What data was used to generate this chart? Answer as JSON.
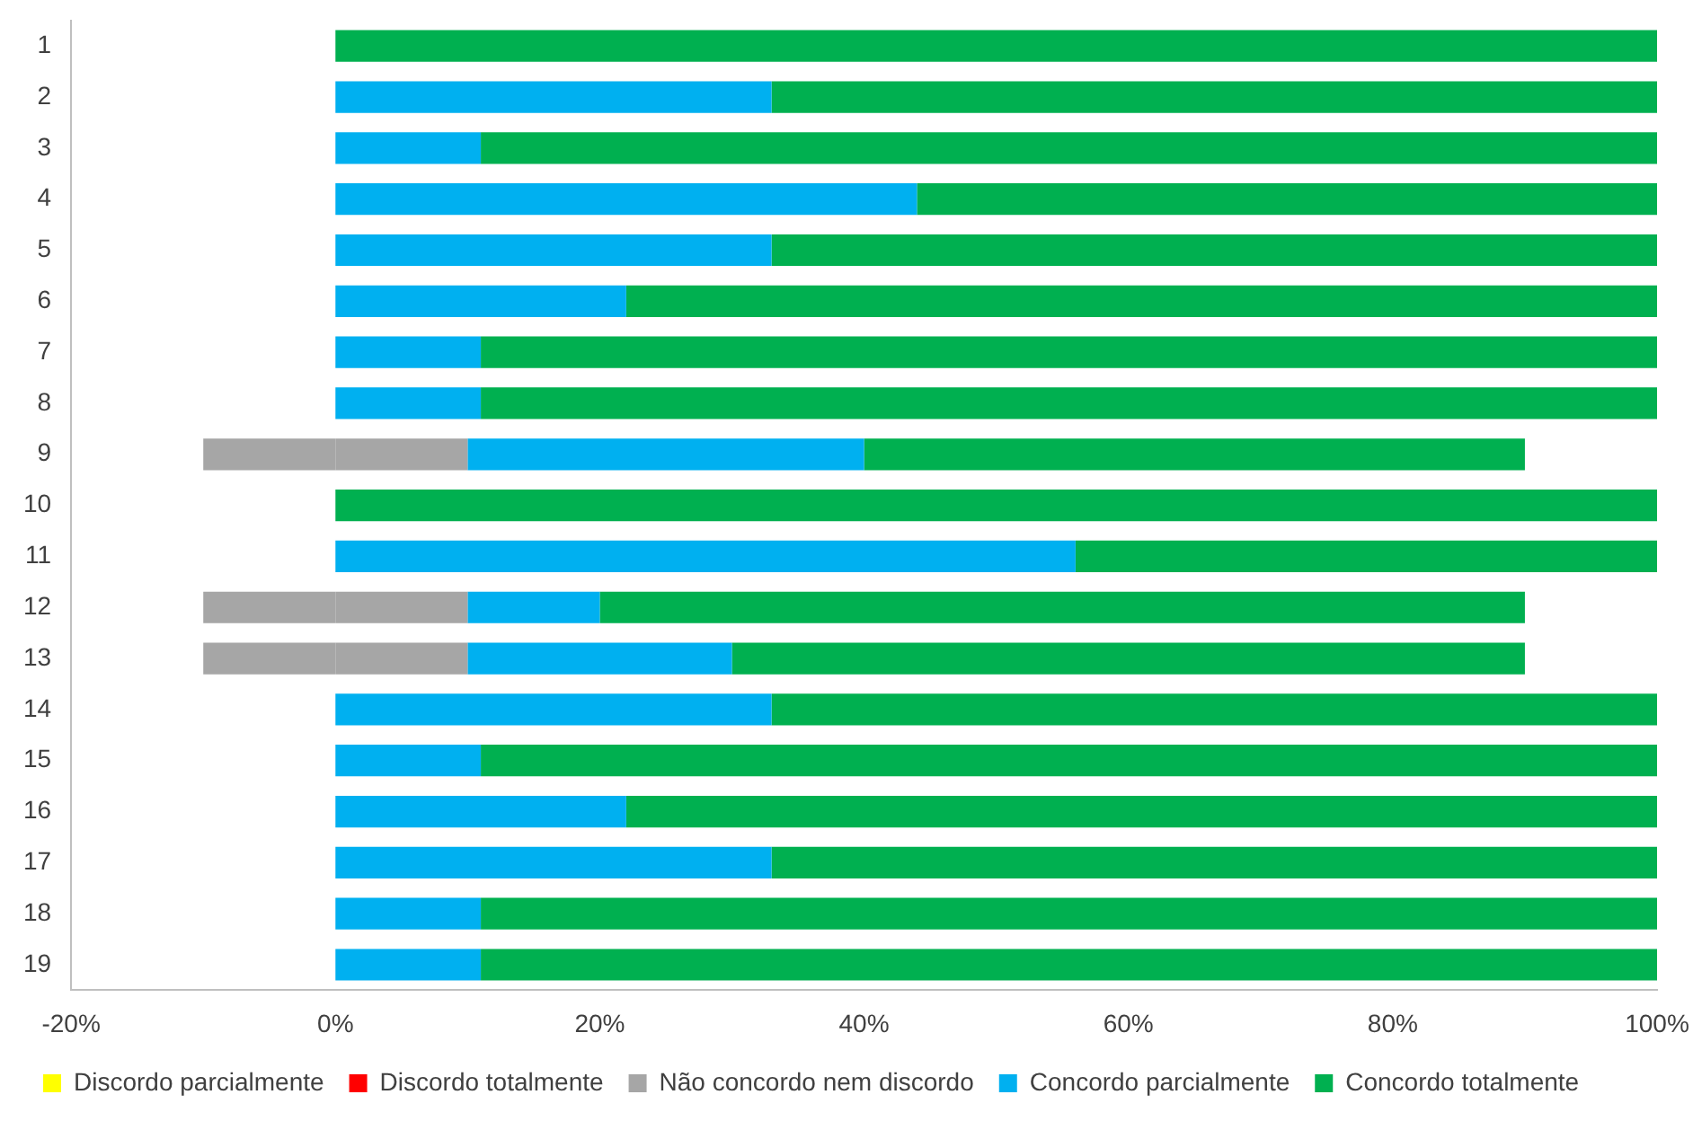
{
  "chart_data": {
    "type": "bar",
    "orientation": "horizontal",
    "stacked": true,
    "categories": [
      "1",
      "2",
      "3",
      "4",
      "5",
      "6",
      "7",
      "8",
      "9",
      "10",
      "11",
      "12",
      "13",
      "14",
      "15",
      "16",
      "17",
      "18",
      "19"
    ],
    "series": [
      {
        "color": "#a6a6a6",
        "values": [
          0,
          0,
          0,
          0,
          0,
          0,
          0,
          0,
          -10,
          0,
          0,
          -10,
          -10,
          0,
          0,
          0,
          0,
          0,
          0
        ]
      },
      {
        "name": "Discordo parcialmente",
        "color": "#ffff00",
        "values": [
          0,
          0,
          0,
          0,
          0,
          0,
          0,
          0,
          0,
          0,
          0,
          0,
          0,
          0,
          0,
          0,
          0,
          0,
          0
        ]
      },
      {
        "name": "Discordo totalmente",
        "color": "#ff0000",
        "values": [
          0,
          0,
          0,
          0,
          0,
          0,
          0,
          0,
          0,
          0,
          0,
          0,
          0,
          0,
          0,
          0,
          0,
          0,
          0
        ]
      },
      {
        "name": "Não concordo nem discordo",
        "color": "#a6a6a6",
        "values": [
          0,
          0,
          0,
          0,
          0,
          0,
          0,
          0,
          10,
          0,
          0,
          10,
          10,
          0,
          0,
          0,
          0,
          0,
          0
        ]
      },
      {
        "name": "Concordo parcialmente",
        "color": "#00b0f0",
        "values": [
          0,
          33,
          11,
          44,
          33,
          22,
          11,
          11,
          30,
          0,
          56,
          10,
          20,
          33,
          11,
          22,
          33,
          11,
          11
        ]
      },
      {
        "name": "Concordo totalmente",
        "color": "#00b050",
        "values": [
          100,
          67,
          89,
          56,
          67,
          78,
          89,
          89,
          50,
          100,
          44,
          70,
          60,
          67,
          89,
          78,
          67,
          89,
          89
        ]
      }
    ],
    "xlim": [
      -20,
      100
    ],
    "xticks": [
      {
        "value": -20,
        "label": "-20%"
      },
      {
        "value": 0,
        "label": "0%"
      },
      {
        "value": 20,
        "label": "20%"
      },
      {
        "value": 40,
        "label": "40%"
      },
      {
        "value": 60,
        "label": "60%"
      },
      {
        "value": 80,
        "label": "80%"
      },
      {
        "value": 100,
        "label": "100%"
      }
    ],
    "grid": false,
    "legend": "bottom"
  }
}
